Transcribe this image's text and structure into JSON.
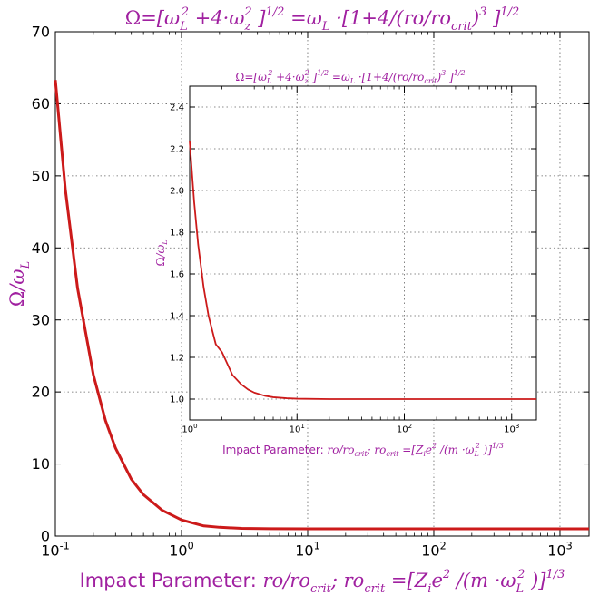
{
  "colors": {
    "curve": "#cc1a1a",
    "label": "#a020a0",
    "grid": "#666666",
    "axis": "#000000"
  },
  "chart_data": [
    {
      "type": "line",
      "title": "Ω = [ω_L² + 4·ω_z²]^1/2 = ω_L · [1 + 4/(ro/ro_crit)³]^1/2",
      "xlabel": "Impact Parameter: ro/ro_crit; ro_crit = [Z_i e² /(m·ω_L²)]^1/3",
      "ylabel": "Ω/ω_L",
      "x_scale": "log",
      "xlim": [
        0.1,
        1700
      ],
      "ylim": [
        0,
        70
      ],
      "x_ticks": [
        "10^-1",
        "10^0",
        "10^1",
        "10^2",
        "10^3"
      ],
      "y_ticks": [
        "0",
        "10",
        "20",
        "30",
        "40",
        "50",
        "60",
        "70"
      ],
      "grid": true,
      "series": [
        {
          "x": [
            0.1,
            0.12,
            0.15,
            0.2,
            0.25,
            0.3,
            0.4,
            0.5,
            0.7,
            1.0,
            1.5,
            2,
            3,
            5,
            10,
            100,
            1000,
            1700
          ],
          "y": [
            63.3,
            48.1,
            34.4,
            22.4,
            16.0,
            12.2,
            7.9,
            5.74,
            3.6,
            2.24,
            1.41,
            1.22,
            1.07,
            1.016,
            1.002,
            1.0,
            1.0,
            1.0
          ]
        }
      ]
    },
    {
      "type": "line",
      "title": "Ω = [ω_L² + 4·ω_z²]^1/2 = ω_L · [1 + 4/(ro/ro_crit)³]^1/2",
      "xlabel": "Impact Parameter: ro/ro_crit; ro_crit = [Z_i e² /(m·ω_L²)]^1/3",
      "ylabel": "Ω/ω_L",
      "x_scale": "log",
      "xlim": [
        1,
        1700
      ],
      "ylim": [
        0.9,
        2.5
      ],
      "x_ticks": [
        "10^0",
        "10^1",
        "10^2",
        "10^3"
      ],
      "y_ticks": [
        "1.0",
        "1.2",
        "1.4",
        "1.6",
        "1.8",
        "2.0",
        "2.2",
        "2.4"
      ],
      "grid": true,
      "series": [
        {
          "x": [
            1.0,
            1.1,
            1.2,
            1.35,
            1.5,
            1.75,
            2.0,
            2.5,
            3.0,
            3.5,
            4.0,
            5.0,
            6.0,
            8.0,
            10,
            20,
            100,
            1000,
            1700
          ],
          "y": [
            2.236,
            1.947,
            1.74,
            1.535,
            1.398,
            1.263,
            1.225,
            1.116,
            1.072,
            1.046,
            1.031,
            1.016,
            1.009,
            1.004,
            1.002,
            1.0,
            1.0,
            1.0,
            1.0
          ]
        }
      ]
    }
  ]
}
